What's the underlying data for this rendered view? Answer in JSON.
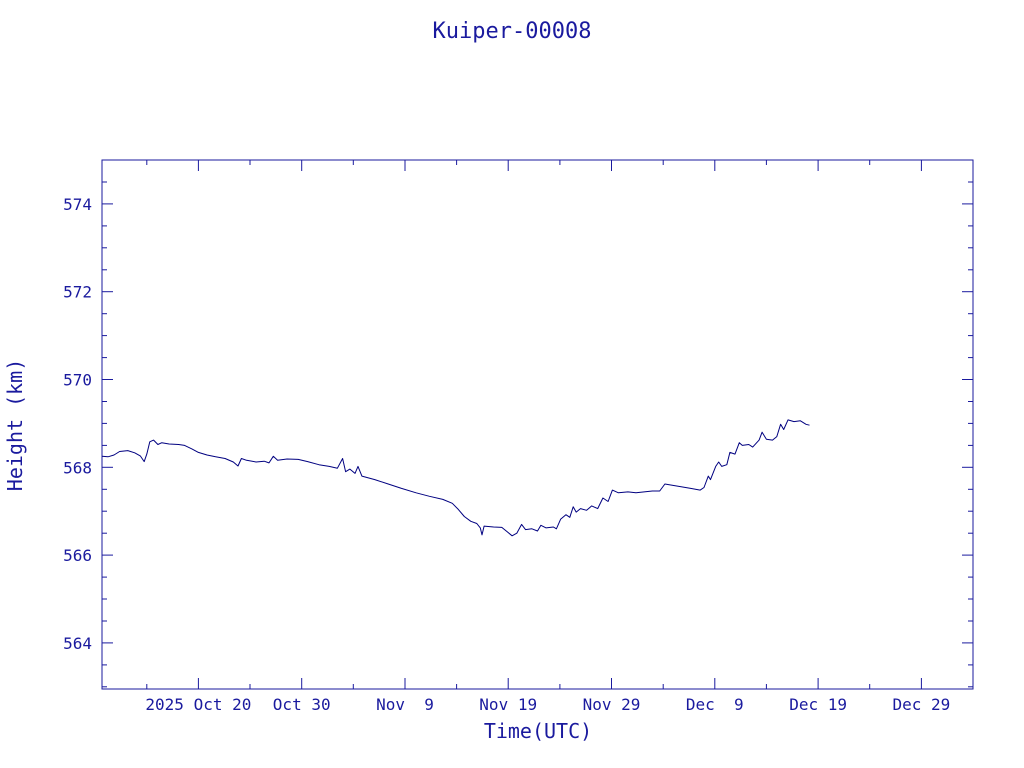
{
  "chart_data": {
    "type": "line",
    "title": "Kuiper-00008",
    "xlabel": "Time(UTC)",
    "ylabel": "Height (km)",
    "x_tick_labels": [
      "2025 Oct 20",
      "Oct 30",
      "Nov  9",
      "Nov 19",
      "Nov 29",
      "Dec  9",
      "Dec 19",
      "Dec 29"
    ],
    "x_tick_dates": [
      "2025-10-20",
      "2025-10-30",
      "2025-11-09",
      "2025-11-19",
      "2025-11-29",
      "2025-12-09",
      "2025-12-19",
      "2025-12-29"
    ],
    "xlim": [
      "2025-10-10T16:00",
      "2026-01-03"
    ],
    "y_tick_labels": [
      "564",
      "566",
      "568",
      "570",
      "572",
      "574"
    ],
    "y_ticks": [
      564,
      566,
      568,
      570,
      572,
      574
    ],
    "ylim": [
      562.95,
      575
    ],
    "grid": false,
    "colors": {
      "line": "#000080",
      "text": "#1a1a9e",
      "axes": "#1a1a9e",
      "background": "#ffffff"
    },
    "series": [
      {
        "values": [
          [
            "2025-10-10T16:00",
            568.25
          ],
          [
            "2025-10-11T06:00",
            568.24
          ],
          [
            "2025-10-11T20:00",
            568.28
          ],
          [
            "2025-10-12T09:00",
            568.36
          ],
          [
            "2025-10-13T04:00",
            568.38
          ],
          [
            "2025-10-13T20:00",
            568.33
          ],
          [
            "2025-10-14T09:00",
            568.26
          ],
          [
            "2025-10-14T18:00",
            568.13
          ],
          [
            "2025-10-15T00:00",
            568.3
          ],
          [
            "2025-10-15T07:00",
            568.58
          ],
          [
            "2025-10-15T16:00",
            568.62
          ],
          [
            "2025-10-16T02:00",
            568.52
          ],
          [
            "2025-10-16T11:00",
            568.56
          ],
          [
            "2025-10-17T04:00",
            568.53
          ],
          [
            "2025-10-18T02:00",
            568.52
          ],
          [
            "2025-10-18T16:00",
            568.5
          ],
          [
            "2025-10-19T09:00",
            568.42
          ],
          [
            "2025-10-20T00:00",
            568.34
          ],
          [
            "2025-10-20T20:00",
            568.28
          ],
          [
            "2025-10-21T16:00",
            568.24
          ],
          [
            "2025-10-22T14:00",
            568.2
          ],
          [
            "2025-10-23T09:00",
            568.12
          ],
          [
            "2025-10-23T20:00",
            568.03
          ],
          [
            "2025-10-24T04:00",
            568.2
          ],
          [
            "2025-10-24T16:00",
            568.16
          ],
          [
            "2025-10-25T14:00",
            568.12
          ],
          [
            "2025-10-26T09:00",
            568.14
          ],
          [
            "2025-10-26T20:00",
            568.1
          ],
          [
            "2025-10-27T06:00",
            568.25
          ],
          [
            "2025-10-27T16:00",
            568.16
          ],
          [
            "2025-10-28T14:00",
            568.19
          ],
          [
            "2025-10-29T16:00",
            568.18
          ],
          [
            "2025-10-30T14:00",
            568.13
          ],
          [
            "2025-10-31T16:00",
            568.06
          ],
          [
            "2025-11-01T16:00",
            568.02
          ],
          [
            "2025-11-02T11:00",
            567.98
          ],
          [
            "2025-11-02T23:00",
            568.2
          ],
          [
            "2025-11-03T06:00",
            567.9
          ],
          [
            "2025-11-03T16:00",
            567.96
          ],
          [
            "2025-11-04T04:00",
            567.86
          ],
          [
            "2025-11-04T11:00",
            568.02
          ],
          [
            "2025-11-04T20:00",
            567.8
          ],
          [
            "2025-11-06T02:00",
            567.72
          ],
          [
            "2025-11-07T09:00",
            567.62
          ],
          [
            "2025-11-08T16:00",
            567.52
          ],
          [
            "2025-11-10T02:00",
            567.42
          ],
          [
            "2025-11-11T09:00",
            567.34
          ],
          [
            "2025-11-12T16:00",
            567.27
          ],
          [
            "2025-11-13T14:00",
            567.18
          ],
          [
            "2025-11-14T04:00",
            567.04
          ],
          [
            "2025-11-14T18:00",
            566.88
          ],
          [
            "2025-11-15T09:00",
            566.77
          ],
          [
            "2025-11-15T23:00",
            566.72
          ],
          [
            "2025-11-16T07:00",
            566.62
          ],
          [
            "2025-11-16T11:00",
            566.46
          ],
          [
            "2025-11-16T16:00",
            566.66
          ],
          [
            "2025-11-17T14:00",
            566.64
          ],
          [
            "2025-11-18T09:00",
            566.63
          ],
          [
            "2025-11-18T23:00",
            566.52
          ],
          [
            "2025-11-19T09:00",
            566.44
          ],
          [
            "2025-11-19T20:00",
            566.5
          ],
          [
            "2025-11-20T07:00",
            566.7
          ],
          [
            "2025-11-20T16:00",
            566.58
          ],
          [
            "2025-11-21T07:00",
            566.6
          ],
          [
            "2025-11-21T20:00",
            566.55
          ],
          [
            "2025-11-22T04:00",
            566.68
          ],
          [
            "2025-11-22T16:00",
            566.62
          ],
          [
            "2025-11-23T09:00",
            566.64
          ],
          [
            "2025-11-23T16:00",
            566.6
          ],
          [
            "2025-11-24T02:00",
            566.82
          ],
          [
            "2025-11-24T14:00",
            566.92
          ],
          [
            "2025-11-24T23:00",
            566.86
          ],
          [
            "2025-11-25T07:00",
            567.1
          ],
          [
            "2025-11-25T14:00",
            566.98
          ],
          [
            "2025-11-26T00:00",
            567.06
          ],
          [
            "2025-11-26T14:00",
            567.02
          ],
          [
            "2025-11-27T02:00",
            567.12
          ],
          [
            "2025-11-27T16:00",
            567.06
          ],
          [
            "2025-11-28T04:00",
            567.3
          ],
          [
            "2025-11-28T16:00",
            567.22
          ],
          [
            "2025-11-29T02:00",
            567.48
          ],
          [
            "2025-11-29T16:00",
            567.42
          ],
          [
            "2025-11-30T14:00",
            567.44
          ],
          [
            "2025-12-01T09:00",
            567.42
          ],
          [
            "2025-12-02T04:00",
            567.44
          ],
          [
            "2025-12-02T23:00",
            567.46
          ],
          [
            "2025-12-03T16:00",
            567.46
          ],
          [
            "2025-12-04T04:00",
            567.62
          ],
          [
            "2025-12-04T16:00",
            567.6
          ],
          [
            "2025-12-05T16:00",
            567.56
          ],
          [
            "2025-12-06T16:00",
            567.52
          ],
          [
            "2025-12-07T14:00",
            567.48
          ],
          [
            "2025-12-07T23:00",
            567.54
          ],
          [
            "2025-12-08T09:00",
            567.8
          ],
          [
            "2025-12-08T14:00",
            567.72
          ],
          [
            "2025-12-09T02:00",
            568.02
          ],
          [
            "2025-12-09T09:00",
            568.12
          ],
          [
            "2025-12-09T16:00",
            568.02
          ],
          [
            "2025-12-10T04:00",
            568.06
          ],
          [
            "2025-12-10T11:00",
            568.34
          ],
          [
            "2025-12-10T23:00",
            568.3
          ],
          [
            "2025-12-11T09:00",
            568.56
          ],
          [
            "2025-12-11T16:00",
            568.5
          ],
          [
            "2025-12-12T07:00",
            568.52
          ],
          [
            "2025-12-12T16:00",
            568.46
          ],
          [
            "2025-12-13T07:00",
            568.62
          ],
          [
            "2025-12-13T14:00",
            568.8
          ],
          [
            "2025-12-14T00:00",
            568.64
          ],
          [
            "2025-12-14T14:00",
            568.62
          ],
          [
            "2025-12-15T00:00",
            568.7
          ],
          [
            "2025-12-15T09:00",
            568.98
          ],
          [
            "2025-12-15T16:00",
            568.86
          ],
          [
            "2025-12-16T02:00",
            569.08
          ],
          [
            "2025-12-16T16:00",
            569.04
          ],
          [
            "2025-12-17T07:00",
            569.06
          ],
          [
            "2025-12-17T20:00",
            568.98
          ],
          [
            "2025-12-18T04:00",
            568.96
          ]
        ]
      }
    ]
  }
}
